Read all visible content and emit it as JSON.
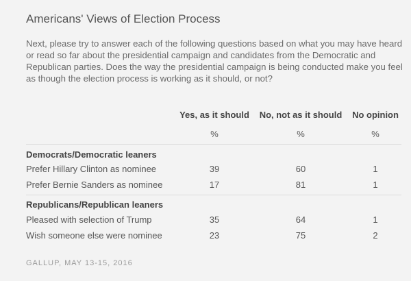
{
  "title": "Americans' Views of Election Process",
  "question": "Next, please try to answer each of the following questions based on what you may have heard or read so far about the presidential campaign and candidates from the Democratic and Republican parties. Does the way the presidential campaign is being conducted make you feel as though the election process is working as it should, or not?",
  "source": "GALLUP, MAY 13-15, 2016",
  "chart_data": {
    "type": "table",
    "title": "Americans' Views of Election Process",
    "columns": [
      "Yes, as it should",
      "No, not as it should",
      "No opinion"
    ],
    "units": [
      "%",
      "%",
      "%"
    ],
    "groups": [
      {
        "name": "Democrats/Democratic leaners",
        "rows": [
          {
            "label": "Prefer Hillary Clinton as nominee",
            "values": [
              39,
              60,
              1
            ]
          },
          {
            "label": "Prefer Bernie Sanders as nominee",
            "values": [
              17,
              81,
              1
            ]
          }
        ]
      },
      {
        "name": "Republicans/Republican leaners",
        "rows": [
          {
            "label": "Pleased with selection of Trump",
            "values": [
              35,
              64,
              1
            ]
          },
          {
            "label": "Wish someone else were nominee",
            "values": [
              23,
              75,
              2
            ]
          }
        ]
      }
    ]
  }
}
